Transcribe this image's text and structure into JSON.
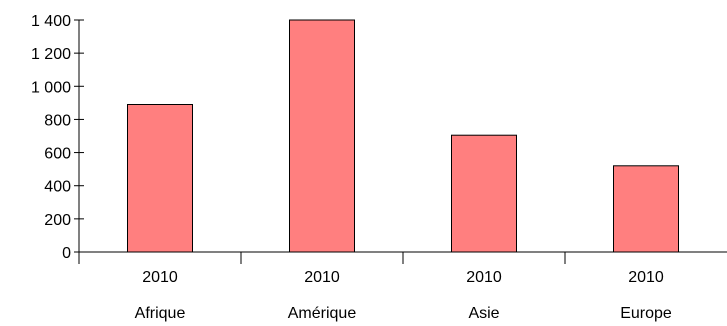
{
  "chart_data": {
    "type": "bar",
    "title": "",
    "xlabel": "",
    "ylabel": "",
    "categories": [
      {
        "year": "2010",
        "region": "Afrique"
      },
      {
        "year": "2010",
        "region": "Amérique"
      },
      {
        "year": "2010",
        "region": "Asie"
      },
      {
        "year": "2010",
        "region": "Europe"
      }
    ],
    "values": [
      890,
      1400,
      705,
      520
    ],
    "ylim": [
      0,
      1400
    ],
    "yticks": [
      {
        "value": 0,
        "label": "0"
      },
      {
        "value": 200,
        "label": "200"
      },
      {
        "value": 400,
        "label": "400"
      },
      {
        "value": 600,
        "label": "600"
      },
      {
        "value": 800,
        "label": "800"
      },
      {
        "value": 1000,
        "label": "1 000"
      },
      {
        "value": 1200,
        "label": "1 200"
      },
      {
        "value": 1400,
        "label": "1 400"
      }
    ],
    "grid": false,
    "legend": "none",
    "colors": {
      "bar_fill": "#ff7f7f",
      "bar_stroke": "#000000",
      "axis": "#000000"
    }
  }
}
